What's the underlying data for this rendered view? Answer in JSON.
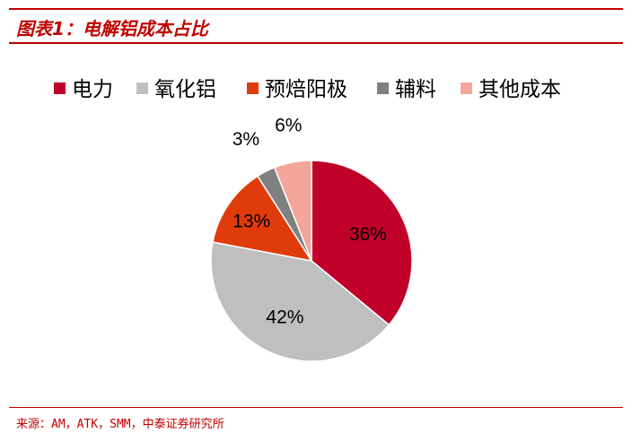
{
  "header": {
    "title": "图表1：电解铝成本占比"
  },
  "colors": {
    "accent": "#c00000",
    "slices": [
      "#c1002a",
      "#bfbfbf",
      "#e03c0b",
      "#808080",
      "#f4a69a"
    ]
  },
  "chart_data": {
    "type": "pie",
    "title": "",
    "labels": [
      "电力",
      "氧化铝",
      "预焙阳极",
      "辅料",
      "其他成本"
    ],
    "values": [
      36,
      42,
      13,
      3,
      6
    ],
    "data_labels": [
      "36%",
      "42%",
      "13%",
      "3%",
      "6%"
    ],
    "legend_position": "top",
    "start_angle": "12 o'clock",
    "direction": "clockwise"
  },
  "footer": {
    "source": "来源：AM，ATK，SMM，中泰证券研究所"
  }
}
